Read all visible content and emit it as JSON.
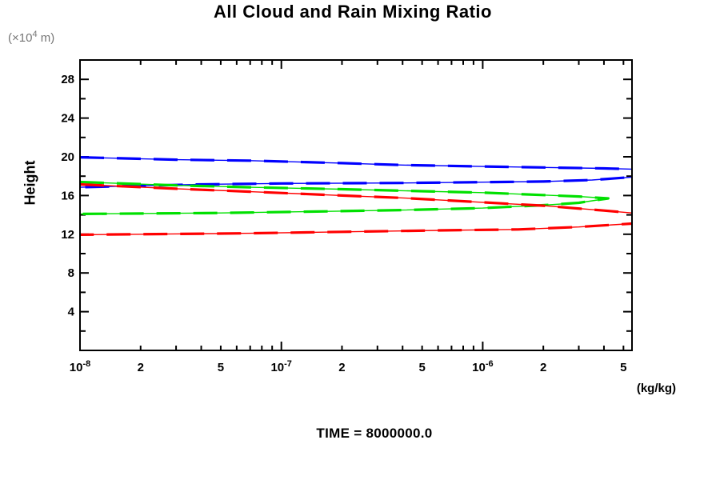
{
  "title": "All Cloud and Rain Mixing Ratio",
  "footer": {
    "text": "TIME = 8000000.0"
  },
  "y_axis": {
    "label": "Height",
    "unit_prefix": "(×10",
    "unit_sup": "4",
    "unit_suffix": " m)",
    "min": 0,
    "max": 30,
    "major_step": 4,
    "minor_step": 2,
    "major_labels": [
      4,
      8,
      12,
      16,
      20,
      24,
      28
    ]
  },
  "x_axis": {
    "unit": "(kg/kg)",
    "scale": "log",
    "min": 1e-08,
    "max": 5.5e-06,
    "decades": [
      -8,
      -7,
      -6
    ],
    "minor_multiples": [
      2,
      3,
      4,
      5,
      6,
      7,
      8,
      9
    ],
    "labels": [
      {
        "v": 1e-08,
        "base": "10",
        "sup": "-8"
      },
      {
        "v": 2e-08,
        "text": "2"
      },
      {
        "v": 5e-08,
        "text": "5"
      },
      {
        "v": 1e-07,
        "base": "10",
        "sup": "-7"
      },
      {
        "v": 2e-07,
        "text": "2"
      },
      {
        "v": 5e-07,
        "text": "5"
      },
      {
        "v": 1e-06,
        "base": "10",
        "sup": "-6"
      },
      {
        "v": 2e-06,
        "text": "2"
      },
      {
        "v": 5e-06,
        "text": "5"
      }
    ]
  },
  "chart_data": {
    "type": "line",
    "title": "All Cloud and Rain Mixing Ratio",
    "xlabel": "(kg/kg)",
    "ylabel": "Height (×10^4 m)",
    "xlim": [
      1e-08,
      5.5e-06
    ],
    "ylim": [
      0,
      30
    ],
    "x_scale": "log",
    "grid": false,
    "legend": "none",
    "note": "Each series is a vertical profile loop: points are [mixing_ratio_kg_per_kg, height_x10^4_m], traced from upper branch around right apex to lower branch. Blue and red apexes exceed the x-axis maximum and are clipped at the frame.",
    "series": [
      {
        "name": "blue-profile",
        "color": "#0000ff",
        "points": [
          [
            1e-08,
            19.95
          ],
          [
            3e-08,
            19.7
          ],
          [
            7e-08,
            19.6
          ],
          [
            2e-07,
            19.35
          ],
          [
            4e-07,
            19.15
          ],
          [
            1e-06,
            19.0
          ],
          [
            2e-06,
            18.9
          ],
          [
            4e-06,
            18.8
          ],
          [
            6e-06,
            18.7
          ],
          [
            8e-06,
            18.2
          ],
          [
            5.5e-06,
            17.9
          ],
          [
            3.5e-06,
            17.6
          ],
          [
            2e-06,
            17.45
          ],
          [
            1e-06,
            17.38
          ],
          [
            4e-07,
            17.3
          ],
          [
            1e-07,
            17.25
          ],
          [
            4e-08,
            17.15
          ],
          [
            1.5e-08,
            16.95
          ],
          [
            1e-08,
            16.85
          ]
        ]
      },
      {
        "name": "green-profile",
        "color": "#00e000",
        "points": [
          [
            1e-08,
            17.4
          ],
          [
            3e-08,
            17.05
          ],
          [
            7e-08,
            16.85
          ],
          [
            2e-07,
            16.65
          ],
          [
            5e-07,
            16.45
          ],
          [
            1e-06,
            16.3
          ],
          [
            2e-06,
            16.05
          ],
          [
            3e-06,
            15.9
          ],
          [
            4.2e-06,
            15.7
          ],
          [
            3e-06,
            15.25
          ],
          [
            2e-06,
            15.0
          ],
          [
            1e-06,
            14.7
          ],
          [
            4e-07,
            14.5
          ],
          [
            1.5e-07,
            14.35
          ],
          [
            5e-08,
            14.2
          ],
          [
            1e-08,
            14.1
          ]
        ]
      },
      {
        "name": "red-profile",
        "color": "#ff0000",
        "points": [
          [
            1e-08,
            17.15
          ],
          [
            3e-08,
            16.7
          ],
          [
            7e-08,
            16.4
          ],
          [
            2e-07,
            16.0
          ],
          [
            4e-07,
            15.75
          ],
          [
            1e-06,
            15.3
          ],
          [
            2e-06,
            14.95
          ],
          [
            4e-06,
            14.45
          ],
          [
            5.5e-06,
            14.2
          ],
          [
            9e-06,
            13.6
          ],
          [
            5.5e-06,
            13.1
          ],
          [
            3e-06,
            12.75
          ],
          [
            1.5e-06,
            12.5
          ],
          [
            6e-07,
            12.4
          ],
          [
            2e-07,
            12.25
          ],
          [
            7e-08,
            12.1
          ],
          [
            2e-08,
            12.0
          ],
          [
            1e-08,
            11.95
          ]
        ]
      }
    ]
  },
  "colors": {
    "frame": "#000000",
    "text": "#000000",
    "unit_gray": "#767676",
    "blue": "#0000ff",
    "green": "#00e000",
    "red": "#ff0000"
  }
}
